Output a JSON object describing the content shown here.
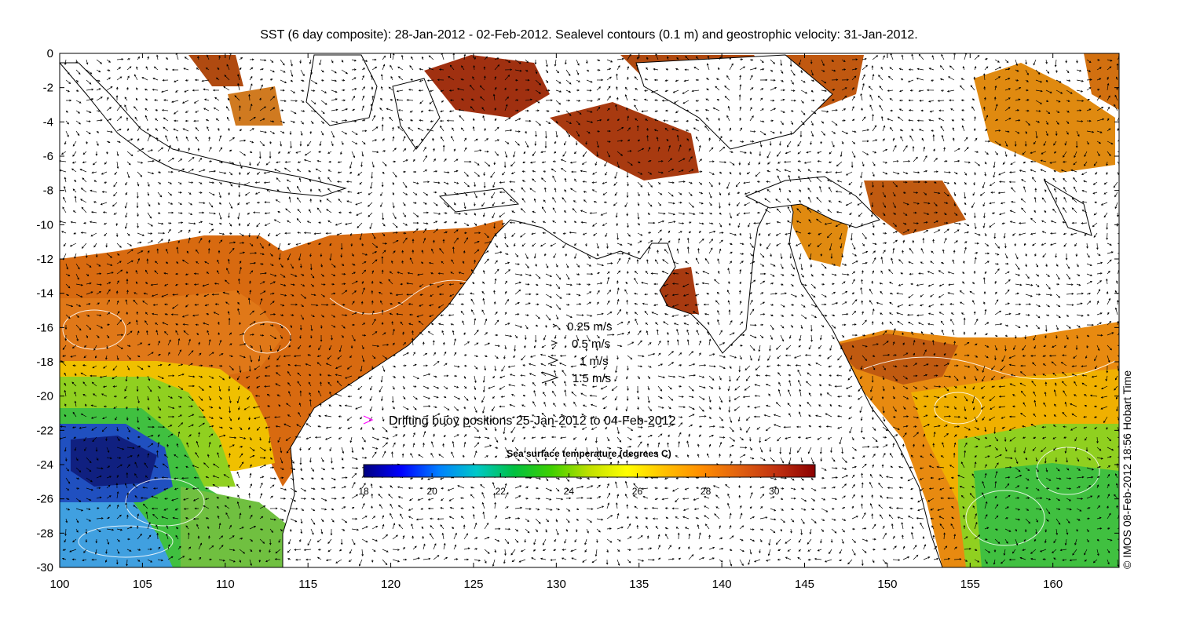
{
  "title": "SST (6 day composite): 28-Jan-2012 - 02-Feb-2012. Sealevel contours (0.1 m) and geostrophic velocity: 31-Jan-2012.",
  "credit": "© IMOS 08-Feb-2012 18:56 Hobart Time",
  "axes": {
    "x": {
      "ticks": [
        100,
        105,
        110,
        115,
        120,
        125,
        130,
        135,
        140,
        145,
        150,
        155,
        160
      ],
      "range": [
        100,
        164
      ]
    },
    "y": {
      "ticks": [
        0,
        -2,
        -4,
        -6,
        -8,
        -10,
        -12,
        -14,
        -16,
        -18,
        -20,
        -22,
        -24,
        -26,
        -28,
        -30
      ],
      "range": [
        -30,
        0
      ]
    }
  },
  "velocity_legend": [
    {
      "label": "0.25 m/s",
      "speed": 0.25
    },
    {
      "label": "0.5 m/s",
      "speed": 0.5
    },
    {
      "label": "1 m/s",
      "speed": 1
    },
    {
      "label": "1.5 m/s",
      "speed": 1.5
    }
  ],
  "buoy_legend": {
    "label": "Drifting buoy positions 25-Jan-2012 to 04-Feb-2012",
    "color": "#ff00ff"
  },
  "colorbar": {
    "title": "Sea surface temperature (degrees C)",
    "ticks": [
      18,
      20,
      22,
      24,
      26,
      28,
      30
    ],
    "range": [
      18,
      31.2
    ],
    "colors": [
      "#00007f",
      "#0000ff",
      "#0080ff",
      "#00c8c8",
      "#00c040",
      "#40d000",
      "#c0e000",
      "#ffff00",
      "#ffc000",
      "#ff8c00",
      "#e06010",
      "#c03010",
      "#8b0000"
    ]
  },
  "colors": {
    "land": "#ffffff",
    "coast": "#000000",
    "contour": "#ffffff"
  }
}
